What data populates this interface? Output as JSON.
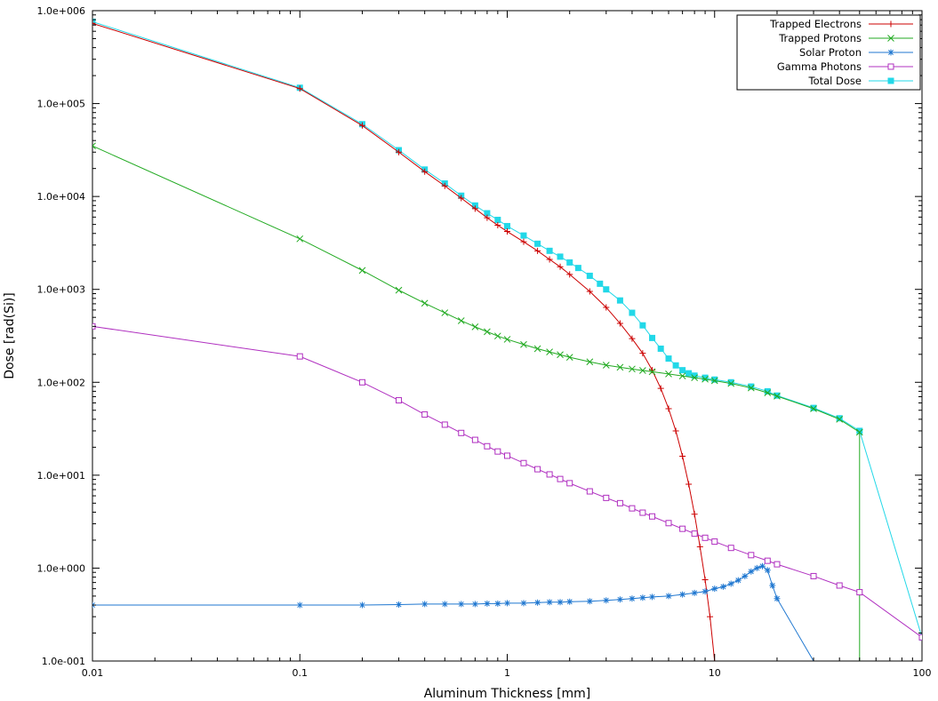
{
  "chart_data": {
    "type": "line",
    "title": "",
    "xlabel": "Aluminum Thickness [mm]",
    "ylabel": "Dose [rad(Si)]",
    "xscale": "log",
    "yscale": "log",
    "xlim": [
      0.01,
      100
    ],
    "ylim": [
      0.1,
      1000000
    ],
    "x_ticks": [
      0.01,
      0.1,
      1,
      10,
      100
    ],
    "x_tick_labels": [
      "0.01",
      "0.1",
      "1",
      "10",
      "100"
    ],
    "y_ticks": [
      0.1,
      1,
      10,
      100,
      1000,
      10000,
      100000,
      1000000
    ],
    "y_tick_labels": [
      "1.0e-001",
      "1.0e+000",
      "1.0e+001",
      "1.0e+002",
      "1.0e+003",
      "1.0e+004",
      "1.0e+005",
      "1.0e+006"
    ],
    "grid": false,
    "legend_position": "top-right",
    "series": [
      {
        "name": "Trapped Electrons",
        "color": "#cc0000",
        "marker": "plus",
        "x": [
          0.01,
          0.1,
          0.2,
          0.3,
          0.4,
          0.5,
          0.6,
          0.7,
          0.8,
          0.9,
          1,
          1.2,
          1.4,
          1.6,
          1.8,
          2,
          2.5,
          3,
          3.5,
          4,
          4.5,
          5,
          5.5,
          6,
          6.5,
          7,
          7.5,
          8,
          8.5,
          9,
          9.5,
          10
        ],
        "y": [
          730000,
          145000,
          58000,
          30000,
          18500,
          13000,
          9600,
          7400,
          5900,
          4900,
          4200,
          3250,
          2600,
          2100,
          1750,
          1450,
          950,
          640,
          430,
          295,
          205,
          135,
          86,
          52,
          30,
          16,
          8,
          3.8,
          1.7,
          0.75,
          0.3,
          0.1
        ]
      },
      {
        "name": "Trapped Protons",
        "color": "#22aa22",
        "marker": "x",
        "x": [
          0.01,
          0.1,
          0.2,
          0.3,
          0.4,
          0.5,
          0.6,
          0.7,
          0.8,
          0.9,
          1,
          1.2,
          1.4,
          1.6,
          1.8,
          2,
          2.5,
          3,
          3.5,
          4,
          4.5,
          5,
          6,
          7,
          8,
          9,
          10,
          12,
          15,
          18,
          20,
          30,
          40,
          50,
          50.01
        ],
        "y": [
          35000,
          3500,
          1600,
          980,
          710,
          560,
          460,
          395,
          350,
          315,
          290,
          255,
          230,
          212,
          198,
          186,
          166,
          153,
          145,
          139,
          134,
          130,
          123,
          117,
          112,
          108,
          104,
          97,
          87,
          77,
          71,
          52,
          40,
          29,
          0.1
        ]
      },
      {
        "name": "Solar Proton",
        "color": "#1f77d0",
        "marker": "star",
        "x": [
          0.01,
          0.1,
          0.2,
          0.3,
          0.4,
          0.5,
          0.6,
          0.7,
          0.8,
          0.9,
          1,
          1.2,
          1.4,
          1.6,
          1.8,
          2,
          2.5,
          3,
          3.5,
          4,
          4.5,
          5,
          6,
          7,
          8,
          9,
          10,
          11,
          12,
          13,
          14,
          15,
          16,
          17,
          18,
          19,
          20,
          30
        ],
        "y": [
          0.4,
          0.4,
          0.4,
          0.405,
          0.41,
          0.41,
          0.41,
          0.41,
          0.415,
          0.415,
          0.42,
          0.42,
          0.425,
          0.43,
          0.43,
          0.435,
          0.44,
          0.45,
          0.46,
          0.47,
          0.48,
          0.49,
          0.5,
          0.52,
          0.54,
          0.56,
          0.6,
          0.63,
          0.68,
          0.74,
          0.82,
          0.92,
          1.0,
          1.05,
          0.95,
          0.65,
          0.47,
          0.1
        ]
      },
      {
        "name": "Gamma Photons",
        "color": "#b030c0",
        "marker": "square-open",
        "x": [
          0.01,
          0.1,
          0.2,
          0.3,
          0.4,
          0.5,
          0.6,
          0.7,
          0.8,
          0.9,
          1,
          1.2,
          1.4,
          1.6,
          1.8,
          2,
          2.5,
          3,
          3.5,
          4,
          4.5,
          5,
          6,
          7,
          8,
          9,
          10,
          12,
          15,
          18,
          20,
          30,
          40,
          50,
          100
        ],
        "y": [
          400,
          190,
          100,
          64,
          45,
          35,
          28.5,
          24,
          20.5,
          18,
          16.2,
          13.5,
          11.6,
          10.2,
          9.1,
          8.2,
          6.7,
          5.7,
          5.0,
          4.4,
          3.95,
          3.6,
          3.05,
          2.65,
          2.35,
          2.12,
          1.93,
          1.65,
          1.38,
          1.2,
          1.1,
          0.82,
          0.65,
          0.55,
          0.18
        ]
      },
      {
        "name": "Total Dose",
        "color": "#22d8e8",
        "marker": "square-filled",
        "x": [
          0.01,
          0.1,
          0.2,
          0.3,
          0.4,
          0.5,
          0.6,
          0.7,
          0.8,
          0.9,
          1,
          1.2,
          1.4,
          1.6,
          1.8,
          2,
          2.2,
          2.5,
          2.8,
          3,
          3.5,
          4,
          4.5,
          5,
          5.5,
          6,
          6.5,
          7,
          7.5,
          8,
          9,
          10,
          12,
          15,
          18,
          20,
          30,
          40,
          50,
          100
        ],
        "y": [
          760000,
          148000,
          60000,
          31500,
          19500,
          13800,
          10200,
          8000,
          6600,
          5600,
          4800,
          3800,
          3100,
          2600,
          2250,
          1950,
          1700,
          1400,
          1150,
          1000,
          760,
          560,
          410,
          300,
          230,
          180,
          152,
          135,
          125,
          118,
          112,
          107,
          100,
          90,
          80,
          72,
          53,
          41,
          30,
          0.18
        ]
      }
    ]
  }
}
